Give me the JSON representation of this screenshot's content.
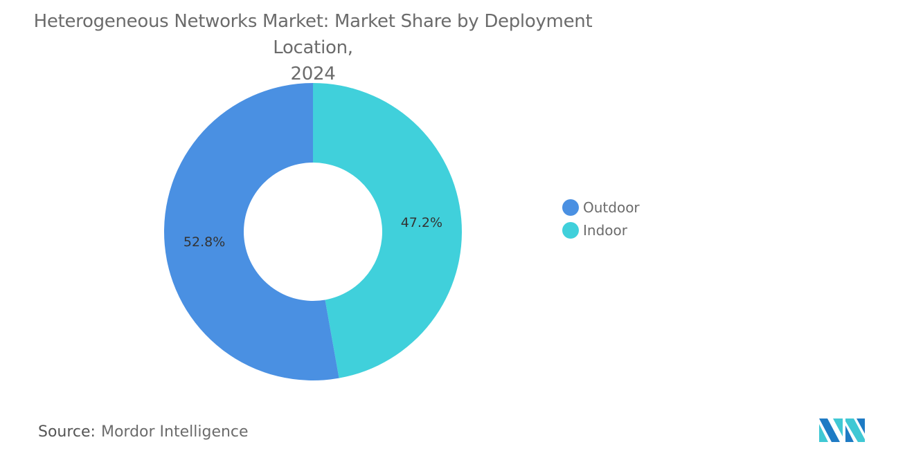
{
  "chart_data": {
    "type": "pie",
    "donut": true,
    "title": "Heterogeneous Networks Market: Market Share by Deployment Location, 2024",
    "title_lines": [
      "Heterogeneous Networks Market: Market Share by Deployment Location,",
      "2024"
    ],
    "categories": [
      "Indoor",
      "Outdoor"
    ],
    "values": [
      47.2,
      52.8
    ],
    "labels": [
      "47.2%",
      "52.8%"
    ],
    "colors": [
      "#40D0DB",
      "#4A90E2"
    ],
    "legend": {
      "placement": "right",
      "entries": [
        {
          "label": "Outdoor",
          "color": "#4A90E2"
        },
        {
          "label": "Indoor",
          "color": "#40D0DB"
        }
      ]
    }
  },
  "source": {
    "label": "Source:",
    "value": "Mordor Intelligence"
  },
  "logo": {
    "name": "mordor-intelligence-logo",
    "colors": [
      "#1E7BC4",
      "#40C8D4"
    ]
  }
}
